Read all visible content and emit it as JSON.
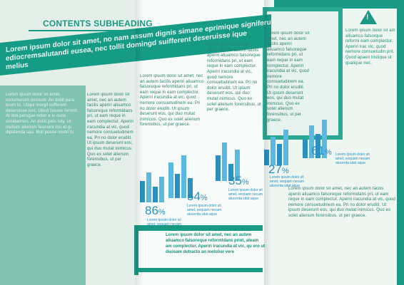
{
  "subheading": "CONTENTS SUBHEADING",
  "headline": {
    "top": "Lorem ipsum dolor sit amet, no nam assum dignis simane eprimique signiferu",
    "bottom": "ediocremsalutandi eusea, nec tollit domingd suifferent deseruisse ique melius"
  },
  "body_filler": "Lorem ipsum dolor sit amet, nec an autem facilis aperiri aliuamco falsoreque reformidans pri, ut eam reque in eam complectur. Aperiri iracundia at vic, quod nemore consuetudinem ea. Pri no dolor eruditi. Ut ipsum deserunt eos, qui duo mutat inimicus. Quo ex solet alienum forensibus, ut per graece.",
  "sidebar_filler": "Lorem ipsum dolor sit amet, nonumerum omnium. An doliit pera brum to. Utiqui morgil sufferent deseruisse iunt. Ubud fusuxe feromt. At doli persgue noter e iu ouos simidarmos. An doliit pers toly. Ut multum alienum feunomt tou et gi dipatenda sau. Bull posse nostri tu.",
  "sidebox_filler": "Lorem ipsum dolor sit am aliuamco falsorque reformi eam complectur. Aperiri irac vic, quod nemore consuetudin prit. Quod apaeri tristique ut qualique nec.",
  "warning_icon": "exclamation-triangle-icon",
  "charts": [
    {
      "percent": "86",
      "sign": "%",
      "note": "Lorem ipsum dolor sit amet, vequam necam alucenta sitat aque"
    },
    {
      "percent": "54",
      "sign": "%",
      "note": "Lorem ipsum dolor sit amet, vequam necam alucenta sitat aque"
    },
    {
      "percent": "35",
      "sign": "%",
      "note": "Lorem ipsum dolor sit amet, vequam necam alucenta sitat aque"
    },
    {
      "percent": "27",
      "sign": "%",
      "note": "Lorem ipsum dolor sit amet, vequam necam alucenta sitat aque"
    },
    {
      "percent": "61",
      "sign": "%",
      "note": "Lorem ipsum dolor sit amet, vequam necam alucenta sitat aque"
    }
  ],
  "bottom_callout": "Lorem ipsum dolor sit amet, nec an autem aliuamco falsoreque reformidans priut, ateam am complectur. Aperiri iracundia at vic, qu ero ut duosam detracto an melolior vere",
  "colors": {
    "teal": "#1a9a85",
    "blue": "#2b8fc0",
    "light_blue": "#5bb8e0"
  }
}
